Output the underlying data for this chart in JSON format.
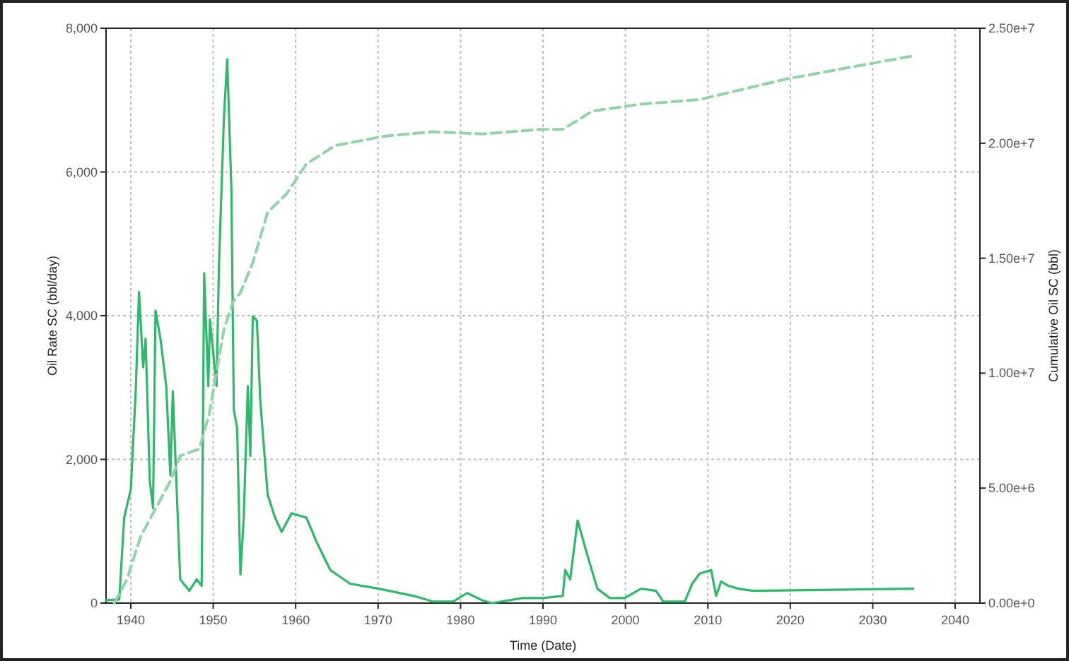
{
  "chart_data": {
    "type": "line",
    "xlabel": "Time (Date)",
    "ylabel": "Oil Rate SC (bbl/day)",
    "y2label": "Cumulative Oil SC (bbl)",
    "xlim": [
      1937,
      2043
    ],
    "xticks": [
      1940,
      1950,
      1960,
      1970,
      1980,
      1990,
      2000,
      2010,
      2020,
      2030,
      2040
    ],
    "ylim": [
      0,
      8000
    ],
    "yticks": [
      {
        "value": 0,
        "label": "0"
      },
      {
        "value": 2000,
        "label": "2,000"
      },
      {
        "value": 4000,
        "label": "4,000"
      },
      {
        "value": 6000,
        "label": "6,000"
      },
      {
        "value": 8000,
        "label": "8,000"
      }
    ],
    "y2lim": [
      0,
      25000000
    ],
    "y2ticks": [
      {
        "value": 0,
        "label": "0.00e+0"
      },
      {
        "value": 5000000,
        "label": "5.00e+6"
      },
      {
        "value": 10000000,
        "label": "1.00e+7"
      },
      {
        "value": 15000000,
        "label": "1.50e+7"
      },
      {
        "value": 20000000,
        "label": "2.00e+7"
      },
      {
        "value": 25000000,
        "label": "2.50e+7"
      }
    ],
    "grid": true,
    "series": [
      {
        "color": "#2eb86a",
        "line_style": "solid",
        "x": [
          1937,
          1938.6,
          1939.2,
          1940,
          1940.6,
          1941,
          1941.5,
          1941.8,
          1942.3,
          1942.7,
          1943,
          1943.6,
          1944.3,
          1944.8,
          1945.1,
          1945.7,
          1946,
          1947.1,
          1948,
          1948.6,
          1948.9,
          1949.4,
          1949.6,
          1950.4,
          1950.7,
          1951.3,
          1951.7,
          1952.2,
          1952.5,
          1952.9,
          1953.3,
          1953.7,
          1954.2,
          1954.5,
          1954.8,
          1955.3,
          1955.7,
          1956.6,
          1957.5,
          1958.3,
          1959.5,
          1961.3,
          1962.5,
          1964.2,
          1966.6,
          1970.1,
          1974.3,
          1976.7,
          1979.1,
          1980.8,
          1982.6,
          1983.8,
          1987.5,
          1990,
          1992.4,
          1992.7,
          1993.3,
          1994.2,
          1995.4,
          1996.6,
          1998.1,
          1999.9,
          2001.9,
          2003.7,
          2004.6,
          2007.2,
          2008.1,
          2009,
          2010.4,
          2011,
          2011.6,
          2012.5,
          2013.7,
          2015.5,
          2034.9
        ],
        "values": [
          40,
          50,
          1190,
          1580,
          2950,
          4330,
          3280,
          3680,
          1710,
          1320,
          4070,
          3680,
          3020,
          1780,
          2950,
          1190,
          330,
          170,
          330,
          240,
          4590,
          3020,
          3950,
          3020,
          4720,
          6760,
          7570,
          5770,
          2690,
          2440,
          400,
          1190,
          3020,
          2050,
          3990,
          3930,
          2830,
          1510,
          1190,
          990,
          1250,
          1190,
          860,
          460,
          270,
          200,
          100,
          20,
          20,
          140,
          40,
          0,
          70,
          70,
          100,
          460,
          330,
          1150,
          660,
          200,
          70,
          70,
          200,
          170,
          20,
          20,
          270,
          410,
          460,
          100,
          300,
          240,
          200,
          170,
          200
        ]
      },
      {
        "axis": "y2",
        "color": "#8fd4a8",
        "line_style": "dashed",
        "x": [
          1938,
          1939.5,
          1941.2,
          1943,
          1944.8,
          1946,
          1948.3,
          1949.5,
          1951.3,
          1952.4,
          1953.3,
          1954.8,
          1956.6,
          1958.9,
          1961.3,
          1964.8,
          1970.7,
          1976.6,
          1982.6,
          1989.6,
          1992.4,
          1994.2,
          1996,
          2001.9,
          2009,
          2019.6,
          2034.9
        ],
        "values": [
          0,
          1000000,
          2900000,
          4100000,
          5300000,
          6400000,
          6700000,
          8200000,
          11900000,
          13100000,
          13500000,
          14800000,
          17000000,
          17800000,
          19100000,
          19900000,
          20300000,
          20500000,
          20400000,
          20600000,
          20600000,
          21000000,
          21400000,
          21700000,
          21900000,
          22800000,
          23800000
        ]
      }
    ]
  }
}
